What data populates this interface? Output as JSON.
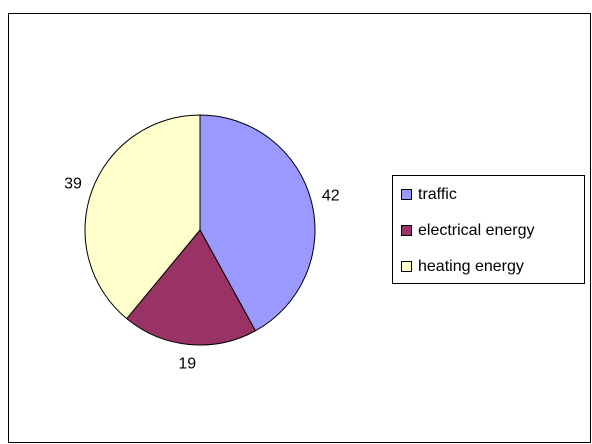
{
  "chart_data": {
    "type": "pie",
    "categories": [
      "traffic",
      "electrical energy",
      "heating energy"
    ],
    "values": [
      42,
      19,
      39
    ],
    "colors": [
      "#9999ff",
      "#993366",
      "#ffffcc"
    ],
    "legend": "right"
  }
}
